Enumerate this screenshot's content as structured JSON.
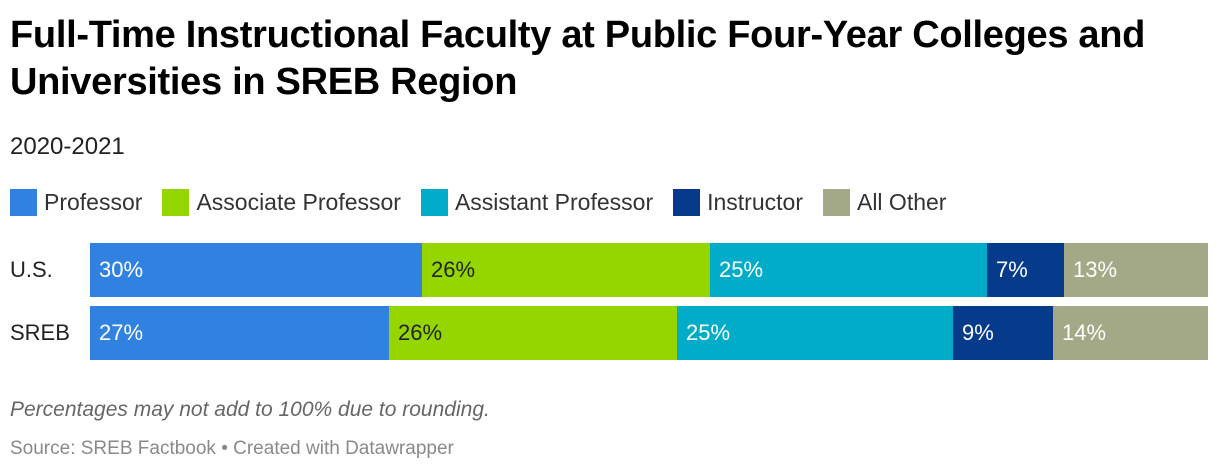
{
  "title": "Full-Time Instructional Faculty at Public Four-Year Colleges and Universities in SREB Region",
  "subtitle": "2020-2021",
  "note": "Percentages may not add to 100% due to rounding.",
  "source": "Source: SREB Factbook • Created with Datawrapper",
  "chart_data": {
    "type": "bar",
    "orientation": "horizontal",
    "stacked": true,
    "normalized": true,
    "title": "Full-Time Instructional Faculty at Public Four-Year Colleges and Universities in SREB Region",
    "subtitle": "2020-2021",
    "legend_position": "top-left",
    "categories": [
      "U.S.",
      "SREB"
    ],
    "series": [
      {
        "name": "Professor",
        "color": "#3182e0",
        "label_color": "#ffffff",
        "values": [
          30,
          27
        ],
        "labels": [
          "30%",
          "27%"
        ]
      },
      {
        "name": "Associate Professor",
        "color": "#96d600",
        "label_color": "#222222",
        "values": [
          26,
          26
        ],
        "labels": [
          "26%",
          "26%"
        ]
      },
      {
        "name": "Assistant Professor",
        "color": "#00acc8",
        "label_color": "#ffffff",
        "values": [
          25,
          25
        ],
        "labels": [
          "25%",
          "25%"
        ]
      },
      {
        "name": "Instructor",
        "color": "#063b8c",
        "label_color": "#ffffff",
        "values": [
          7,
          9
        ],
        "labels": [
          "7%",
          "9%"
        ]
      },
      {
        "name": "All Other",
        "color": "#a3a886",
        "label_color": "#ffffff",
        "values": [
          13,
          14
        ],
        "labels": [
          "13%",
          "14%"
        ]
      }
    ]
  }
}
